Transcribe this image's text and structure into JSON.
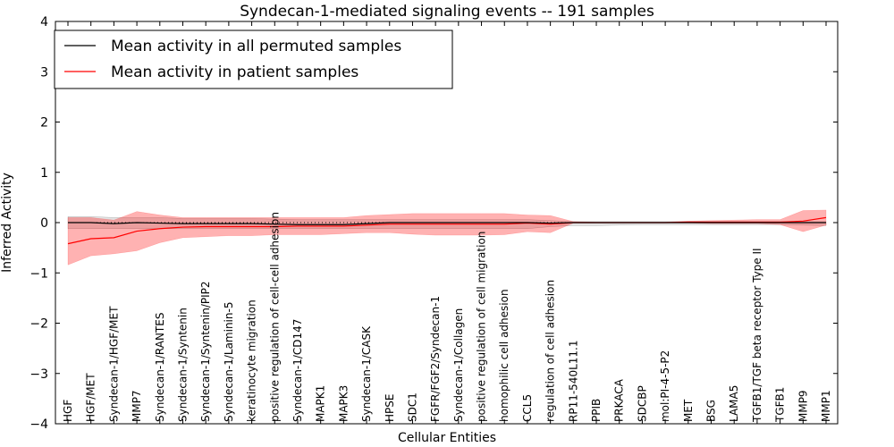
{
  "chart_data": {
    "type": "line",
    "title": "Syndecan-1-mediated signaling events -- 191 samples",
    "xlabel": "Cellular Entities",
    "ylabel": "Inferred Activity",
    "ylim": [
      -4,
      4
    ],
    "yticks": [
      -4,
      -3,
      -2,
      -1,
      0,
      1,
      2,
      3,
      4
    ],
    "ytick_labels": [
      "−4",
      "−3",
      "−2",
      "−1",
      "0",
      "1",
      "2",
      "3",
      "4"
    ],
    "legend_position": "top-left",
    "categories": [
      "HGF",
      "HGF/MET",
      "Syndecan-1/HGF/MET",
      "MMP7",
      "Syndecan-1/RANTES",
      "Syndecan-1/Syntenin",
      "Syndecan-1/Syntenin/PIP2",
      "Syndecan-1/Laminin-5",
      "keratinocyte migration",
      "positive regulation of cell-cell adhesion",
      "Syndecan-1/CD147",
      "MAPK1",
      "MAPK3",
      "Syndecan-1/CASK",
      "HPSE",
      "SDC1",
      "FGFR/FGF2/Syndecan-1",
      "Syndecan-1/Collagen",
      "positive regulation of cell migration",
      "homophilic cell adhesion",
      "CCL5",
      "regulation of cell adhesion",
      "RP11-540L11.1",
      "PPIB",
      "PRKACA",
      "SDCBP",
      "mol:PI-4-5-P2",
      "MET",
      "BSG",
      "LAMA5",
      "TGFB1/TGF beta receptor Type II",
      "TGFB1",
      "MMP9",
      "MMP1"
    ],
    "series": [
      {
        "name": "Mean activity in all permuted samples",
        "color": "#000000",
        "values": [
          0.0,
          0.0,
          -0.02,
          0.0,
          -0.01,
          -0.02,
          -0.02,
          -0.02,
          -0.02,
          -0.03,
          -0.04,
          -0.04,
          -0.04,
          -0.02,
          0.0,
          0.0,
          0.0,
          0.0,
          0.0,
          0.0,
          0.0,
          -0.01,
          0.0,
          0.0,
          0.0,
          0.0,
          0.0,
          0.0,
          0.0,
          0.0,
          0.0,
          0.0,
          0.0,
          0.0
        ],
        "band_upper": [
          0.12,
          0.12,
          0.1,
          0.1,
          0.1,
          0.08,
          0.08,
          0.08,
          0.08,
          0.07,
          0.06,
          0.06,
          0.06,
          0.06,
          0.06,
          0.06,
          0.06,
          0.06,
          0.06,
          0.06,
          0.06,
          0.04,
          0.02,
          0.02,
          0.02,
          0.02,
          0.02,
          0.02,
          0.02,
          0.02,
          0.02,
          0.02,
          0.02,
          0.02
        ],
        "band_lower": [
          -0.12,
          -0.12,
          -0.12,
          -0.12,
          -0.12,
          -0.12,
          -0.12,
          -0.12,
          -0.12,
          -0.12,
          -0.12,
          -0.12,
          -0.12,
          -0.12,
          -0.12,
          -0.12,
          -0.12,
          -0.12,
          -0.12,
          -0.12,
          -0.12,
          -0.08,
          -0.06,
          -0.06,
          -0.05,
          -0.04,
          -0.04,
          -0.04,
          -0.04,
          -0.04,
          -0.04,
          -0.04,
          -0.05,
          -0.06
        ]
      },
      {
        "name": "Mean activity in patient samples",
        "color": "#ff0000",
        "values": [
          -0.42,
          -0.32,
          -0.3,
          -0.17,
          -0.12,
          -0.09,
          -0.08,
          -0.08,
          -0.08,
          -0.08,
          -0.07,
          -0.07,
          -0.07,
          -0.05,
          -0.03,
          -0.03,
          -0.03,
          -0.03,
          -0.03,
          -0.03,
          -0.01,
          -0.03,
          0.0,
          0.0,
          0.0,
          0.0,
          0.0,
          0.01,
          0.01,
          0.01,
          0.01,
          0.01,
          0.03,
          0.1
        ],
        "band_upper": [
          0.1,
          0.1,
          0.05,
          0.22,
          0.15,
          0.1,
          0.1,
          0.1,
          0.1,
          0.1,
          0.1,
          0.1,
          0.1,
          0.14,
          0.16,
          0.18,
          0.18,
          0.18,
          0.18,
          0.18,
          0.15,
          0.14,
          0.02,
          0.01,
          0.01,
          0.01,
          0.01,
          0.03,
          0.04,
          0.05,
          0.06,
          0.06,
          0.24,
          0.25
        ],
        "band_lower": [
          -0.84,
          -0.66,
          -0.62,
          -0.56,
          -0.4,
          -0.3,
          -0.28,
          -0.26,
          -0.26,
          -0.24,
          -0.24,
          -0.24,
          -0.22,
          -0.2,
          -0.2,
          -0.23,
          -0.25,
          -0.25,
          -0.25,
          -0.24,
          -0.18,
          -0.2,
          -0.01,
          -0.01,
          -0.01,
          -0.01,
          -0.01,
          -0.01,
          -0.02,
          -0.02,
          -0.02,
          -0.04,
          -0.18,
          -0.05
        ]
      }
    ],
    "reference_line": {
      "value": 0,
      "style": "dotted",
      "color": "#000000"
    }
  }
}
